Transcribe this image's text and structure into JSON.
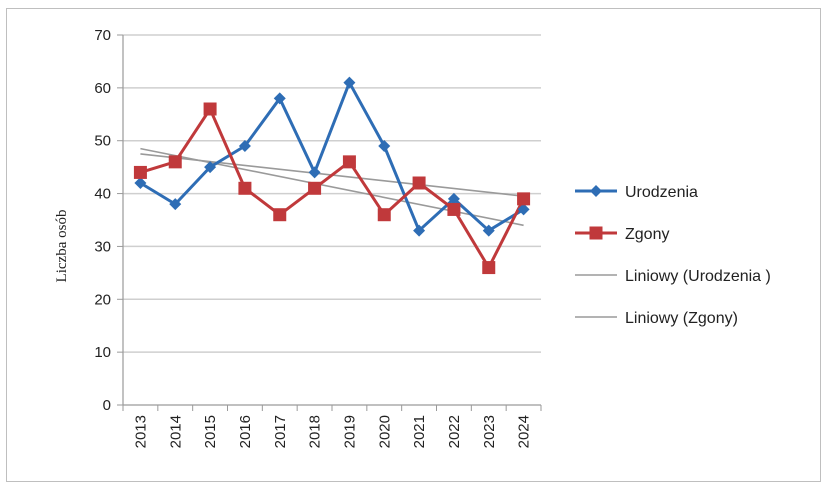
{
  "chart_data": {
    "type": "line",
    "title": "",
    "xlabel": "",
    "ylabel": "Liczba osób",
    "ylim": [
      0,
      70
    ],
    "ytick_step": 10,
    "grid": true,
    "legend_position": "right",
    "categories": [
      "2013",
      "2014",
      "2015",
      "2016",
      "2017",
      "2018",
      "2019",
      "2020",
      "2021",
      "2022",
      "2023",
      "2024"
    ],
    "series": [
      {
        "name": "Urodzenia",
        "color": "#2e6db5",
        "marker": "diamond",
        "values": [
          42,
          38,
          45,
          49,
          58,
          44,
          61,
          49,
          33,
          39,
          33,
          37
        ]
      },
      {
        "name": "Zgony",
        "color": "#c0393b",
        "marker": "square",
        "values": [
          44,
          46,
          56,
          41,
          36,
          41,
          46,
          36,
          42,
          37,
          26,
          39
        ]
      }
    ],
    "trendlines": [
      {
        "name": "Liniowy (Urodzenia )",
        "color": "#9a9a9a",
        "start": 48.5,
        "end": 34.0
      },
      {
        "name": "Liniowy (Zgony)",
        "color": "#9a9a9a",
        "start": 47.5,
        "end": 39.5
      }
    ]
  }
}
